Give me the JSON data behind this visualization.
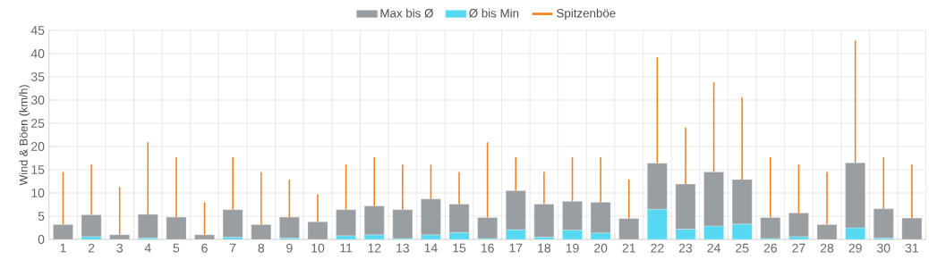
{
  "chart_data": {
    "type": "bar",
    "stacked": true,
    "ylabel": "Wind & Böen (km/h)",
    "categories": [
      "1",
      "2",
      "3",
      "4",
      "5",
      "6",
      "7",
      "8",
      "9",
      "10",
      "11",
      "12",
      "13",
      "14",
      "15",
      "16",
      "17",
      "18",
      "19",
      "20",
      "21",
      "22",
      "23",
      "24",
      "25",
      "26",
      "27",
      "28",
      "29",
      "30",
      "31"
    ],
    "series": [
      {
        "name": "Ø bis Min",
        "color": "#55d8f1",
        "values": [
          0,
          0.6,
          0,
          0.3,
          0,
          0,
          0.5,
          0,
          0.3,
          0,
          0.8,
          1.0,
          0.2,
          1.0,
          1.5,
          0.2,
          2.1,
          0.5,
          2.0,
          1.4,
          0,
          6.5,
          2.2,
          2.9,
          3.3,
          0.2,
          0.6,
          0,
          2.5,
          0.3,
          0
        ]
      },
      {
        "name": "Max bis Ø",
        "color": "#999ea3",
        "values": [
          3.2,
          4.7,
          1.0,
          5.1,
          4.8,
          1.0,
          5.9,
          3.2,
          4.5,
          3.8,
          5.6,
          6.2,
          6.2,
          7.7,
          6.1,
          4.5,
          8.4,
          7.1,
          6.2,
          6.6,
          4.5,
          9.9,
          9.7,
          11.6,
          9.6,
          4.5,
          5.1,
          3.2,
          14.0,
          6.3,
          4.6
        ]
      },
      {
        "name": "Spitzenböe",
        "type": "bar",
        "color": "#f4811f",
        "values": [
          11.3,
          10.8,
          10.3,
          15.5,
          12.9,
          7.0,
          11.3,
          11.3,
          8.1,
          5.9,
          9.7,
          10.5,
          9.7,
          7.4,
          6.9,
          16.2,
          7.2,
          6.9,
          9.5,
          9.7,
          8.4,
          22.8,
          12.2,
          19.3,
          17.7,
          13.0,
          10.4,
          11.3,
          26.3,
          11.1,
          11.5
        ]
      }
    ],
    "ylim": [
      0,
      45
    ],
    "yticks": [
      0,
      5,
      10,
      15,
      20,
      25,
      30,
      35,
      40,
      45
    ],
    "grid": true,
    "legend": "top"
  }
}
